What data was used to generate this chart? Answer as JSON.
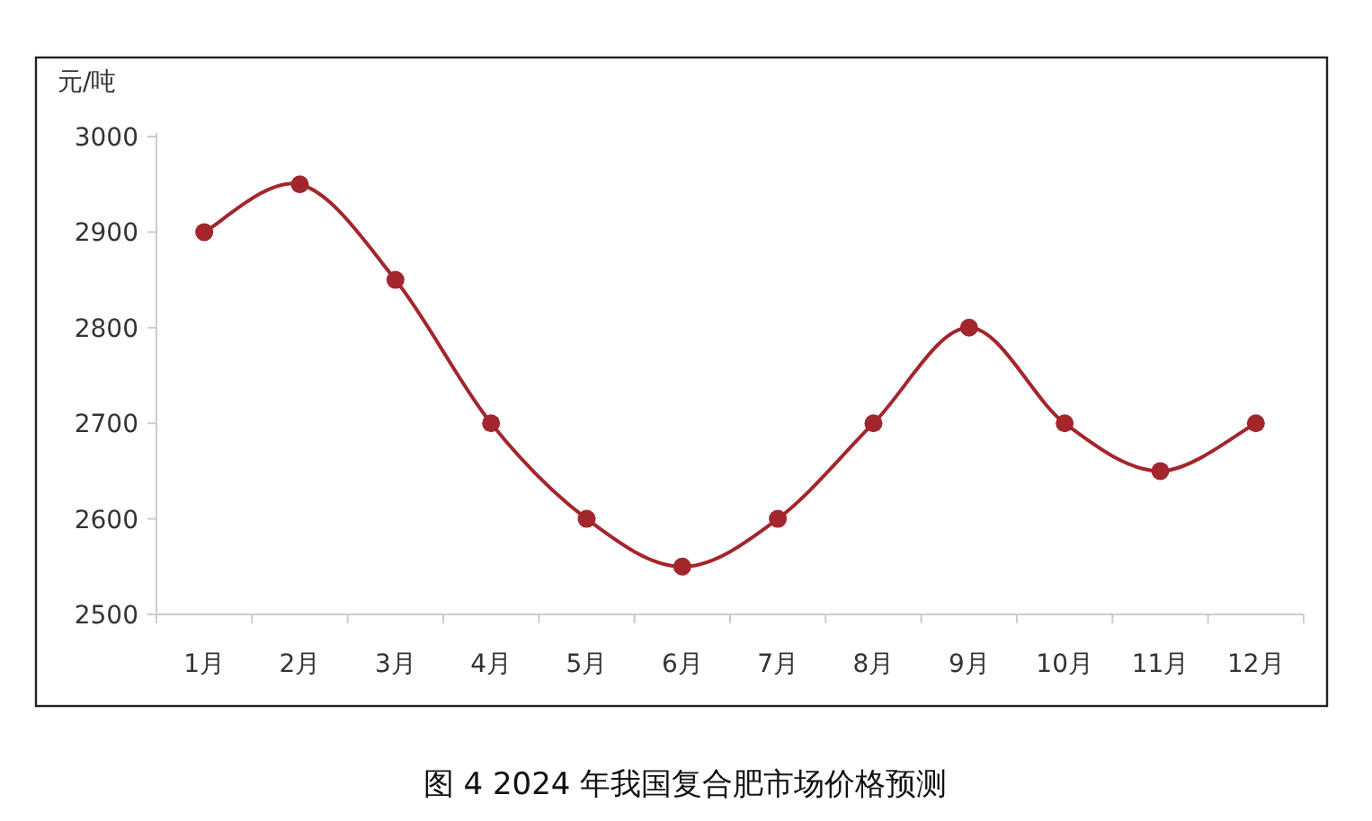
{
  "chart_data": {
    "type": "line",
    "title": "图 4  2024 年我国复合肥市场价格预测",
    "ylabel": "元/吨",
    "categories": [
      "1月",
      "2月",
      "3月",
      "4月",
      "5月",
      "6月",
      "7月",
      "8月",
      "9月",
      "10月",
      "11月",
      "12月"
    ],
    "values": [
      2900,
      2950,
      2850,
      2700,
      2600,
      2550,
      2600,
      2700,
      2800,
      2700,
      2650,
      2700
    ],
    "color": "#a3262c",
    "marker": "circle",
    "ylim": [
      2500,
      3000
    ],
    "yticks": [
      2500,
      2600,
      2700,
      2800,
      2900,
      3000
    ]
  }
}
